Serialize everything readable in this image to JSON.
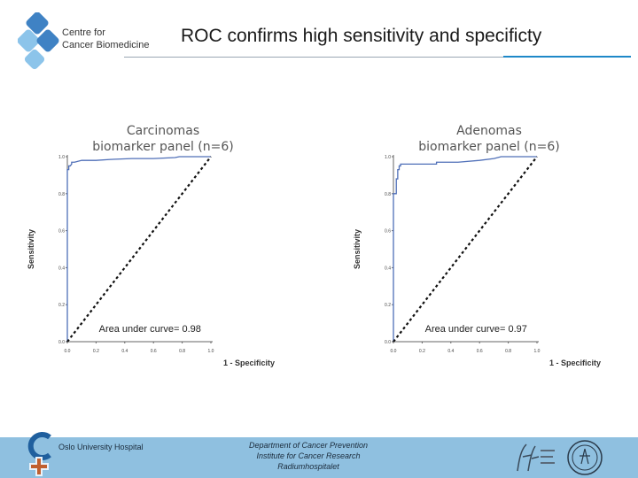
{
  "header": {
    "center_line1": "Centre for",
    "center_line2": "Cancer Biomedicine",
    "title": "ROC confirms high sensitivity and specificty"
  },
  "colors": {
    "accent": "#1e88c8",
    "footer_band": "#8fc0e0",
    "roc_curve": "#4f6fb8",
    "logo_blue": "#3f82c4",
    "logo_light": "#8cc4ea"
  },
  "chart_data": [
    {
      "type": "line",
      "title_line1": "Carcinomas",
      "title_line2": "biomarker panel (n=6)",
      "xlabel": "1 - Specificity",
      "ylabel": "Sensitivity",
      "xlim": [
        0,
        1
      ],
      "ylim": [
        0,
        1
      ],
      "xticks": [
        "0.0",
        "0.2",
        "0.4",
        "0.6",
        "0.8",
        "1.0"
      ],
      "yticks": [
        "0.0",
        "0.2",
        "0.4",
        "0.6",
        "0.8",
        "1.0"
      ],
      "annotation": "Area under curve= 0.98",
      "grid": false,
      "series": [
        {
          "curve_type": "roc",
          "x": [
            0.0,
            0.0,
            0.01,
            0.01,
            0.02,
            0.03,
            0.03,
            0.05,
            0.1,
            0.2,
            0.3,
            0.45,
            0.6,
            0.75,
            0.78,
            1.0
          ],
          "y": [
            0.0,
            0.93,
            0.93,
            0.95,
            0.95,
            0.96,
            0.97,
            0.97,
            0.98,
            0.98,
            0.985,
            0.99,
            0.99,
            0.995,
            1.0,
            1.0
          ]
        },
        {
          "curve_type": "reference",
          "x": [
            0,
            1
          ],
          "y": [
            0,
            1
          ]
        }
      ]
    },
    {
      "type": "line",
      "title_line1": "Adenomas",
      "title_line2": "biomarker panel (n=6)",
      "xlabel": "1 - Specificity",
      "ylabel": "Sensitivity",
      "xlim": [
        0,
        1
      ],
      "ylim": [
        0,
        1
      ],
      "xticks": [
        "0.0",
        "0.2",
        "0.4",
        "0.6",
        "0.8",
        "1.0"
      ],
      "yticks": [
        "0.0",
        "0.2",
        "0.4",
        "0.6",
        "0.8",
        "1.0"
      ],
      "annotation": "Area under curve= 0.97",
      "grid": false,
      "series": [
        {
          "curve_type": "roc",
          "x": [
            0.0,
            0.0,
            0.02,
            0.02,
            0.03,
            0.03,
            0.04,
            0.04,
            0.05,
            0.05,
            0.3,
            0.3,
            0.45,
            0.6,
            0.7,
            0.75,
            1.0
          ],
          "y": [
            0.0,
            0.8,
            0.8,
            0.88,
            0.88,
            0.93,
            0.93,
            0.95,
            0.95,
            0.96,
            0.96,
            0.97,
            0.97,
            0.98,
            0.99,
            1.0,
            1.0
          ]
        },
        {
          "curve_type": "reference",
          "x": [
            0,
            1
          ],
          "y": [
            0,
            1
          ]
        }
      ]
    }
  ],
  "footer": {
    "hospital": "Oslo University Hospital",
    "dept_line1": "Department of Cancer Prevention",
    "dept_line2": "Institute for Cancer Research",
    "dept_line3": "Radiumhospitalet"
  }
}
